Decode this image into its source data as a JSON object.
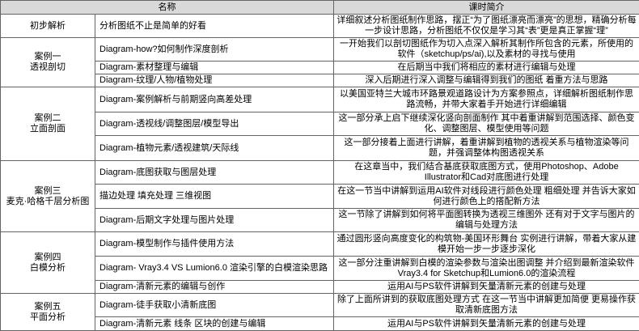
{
  "header": {
    "name": "名称",
    "intro": "课时简介"
  },
  "colors": {
    "header_bg": "#d9d9d9",
    "border": "#646464"
  },
  "sections": [
    {
      "lines": [
        "初步解析"
      ],
      "rows": [
        {
          "name": "分析图纸不止是简单的好看",
          "desc": "详细叙述分析图纸制作思路，摆正“为了图纸漂亮而漂亮”的思想，精确分析每一步设计思路，分析图纸不仅仅是学习其“表”更是真正掌握“理”"
        }
      ]
    },
    {
      "lines": [
        "案例一",
        "透视剖切"
      ],
      "rows": [
        {
          "name": "Diagram-how?如何制作深度剖析",
          "desc": "一开始我们以剖切图纸作为切入点深入解析其制作所包含的元素，所使用的软件（sketchup/ps/ai),以及素材的寻找与使用"
        },
        {
          "name": "Diagram-素材整理与编辑",
          "desc": "在后期当中我们将相应的素材进行编辑与处理"
        },
        {
          "name": "Diagram-纹理/人物/植物处理",
          "desc": "深入后期进行深入调整与编辑得到我们的图纸 着重方法与思路"
        }
      ]
    },
    {
      "lines": [
        "案例二",
        "立面剖面"
      ],
      "rows": [
        {
          "name": "Diagram-案例解析与前期竖向高差处理",
          "desc": "以美国亚特兰大城市环路景观道路设计为方案参照点，详细解析图纸制作思路流畅，并带大家着手开始进行详细编辑"
        },
        {
          "name": "Diagram-透视线/调整图层/模型导出",
          "desc": "这一部分承上启下继续深化竖向剖面制作 其中着重讲解到范围选择、颜色变化、调整图层、模型使用等问题"
        },
        {
          "name": "Diagram-植物元素/透视建筑/天际线",
          "desc": "这一部分接着上面进行讲解，着重讲解到植物的透视关系与植物渲染等问题，并强调整体构图透视关系"
        }
      ]
    },
    {
      "lines": [
        "案例三",
        "麦克·哈格千层分析图"
      ],
      "rows": [
        {
          "name": "Diagram-底图获取与图层处理",
          "desc": "在这章当中，我们结合基底获取底图方式，使用Photoshop、Adobe Illustrator和Cad对底图进行处理"
        },
        {
          "name": "描边处理 填充处理 三维视图",
          "desc": "在这一节当中讲解到运用AI软件对线段进行颜色处理 粗细处理 并告诉大家如何进行颜色上的搭配新方法"
        },
        {
          "name": "Diagram-后期文字处理与图片处理",
          "desc": "这一节除了讲解到如何将平面图转换为透视三维图外 还有对于文字与图片的编辑与处理方法"
        }
      ]
    },
    {
      "lines": [
        "案例四",
        "白模分析"
      ],
      "rows": [
        {
          "name": "Diagram-模型制作与插件使用方法",
          "desc": "通过圆形竖向高度变化的构筑物-美国环形舞台 实例进行讲解，带着大家从建模开始一步一步逐步深化"
        },
        {
          "name": "Diagram- Vray3.4 VS Lumion6.0 渲染引擎的白模渲染思路",
          "desc": "这一部分注重讲解到白模的渲染参数与渲染出图调整 并介绍到最新渲染软件Vray3.4 for Sketchup和Lumion6.0的渲染流程"
        },
        {
          "name": "Diagram-清新元素的编辑与创作",
          "desc": "运用AI与PS软件讲解到矢量清新元素的创建与处理"
        }
      ]
    },
    {
      "lines": [
        "案例五",
        "平面分析"
      ],
      "rows": [
        {
          "name": "Diagram-徒手获取小清新底图",
          "desc": "除了上面所讲到的获取底图处理方式 在这一节当中讲解更加简便 更易操作获取清新底图方法"
        },
        {
          "name": "Diagram-清新元素 线条 区块的创建与编辑",
          "desc": "运用AI与PS软件讲解到矢量清新元素的创建与处理"
        }
      ]
    }
  ]
}
